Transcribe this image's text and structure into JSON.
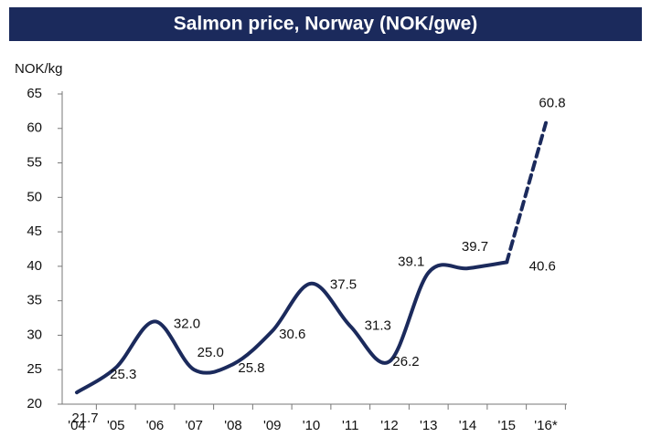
{
  "chart_data": {
    "type": "line",
    "title": "Salmon price, Norway (NOK/gwe)",
    "y_label": "NOK/kg",
    "categories": [
      "'04",
      "'05",
      "'06",
      "'07",
      "'08",
      "'09",
      "'10",
      "'11",
      "'12",
      "'13",
      "'14",
      "'15",
      "'16*"
    ],
    "values": [
      21.7,
      25.3,
      32.0,
      25.0,
      25.8,
      30.6,
      37.5,
      31.3,
      26.2,
      39.1,
      39.7,
      40.6,
      60.8
    ],
    "value_labels": [
      "21.7",
      "25.3",
      "32.0",
      "25.0",
      "25.8",
      "30.6",
      "37.5",
      "31.3",
      "26.2",
      "39.1",
      "39.7",
      "40.6",
      "60.8"
    ],
    "color": "#1b2a5c",
    "ylim": [
      20,
      65
    ],
    "yticks": [
      20,
      25,
      30,
      35,
      40,
      45,
      50,
      55,
      60,
      65
    ],
    "grid": false
  }
}
